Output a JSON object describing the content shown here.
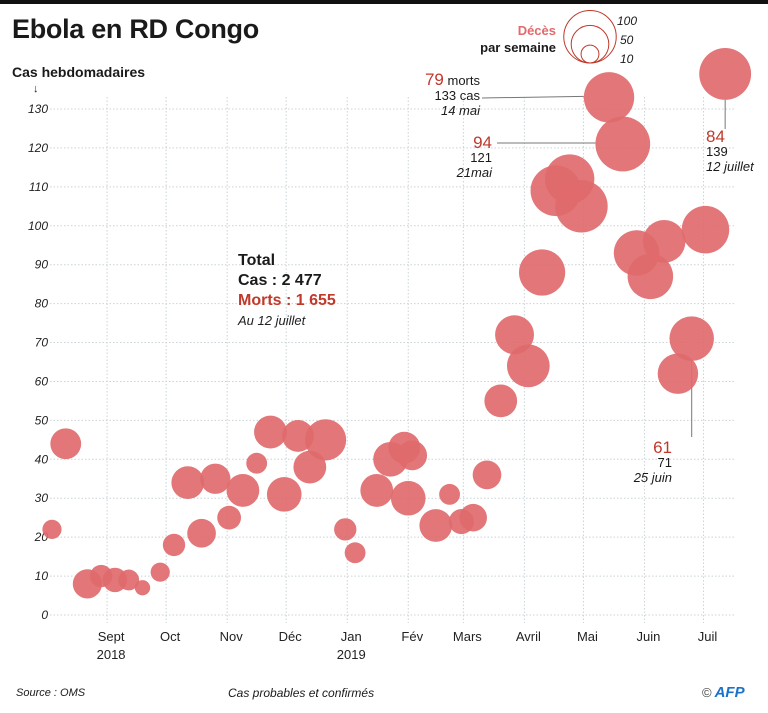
{
  "title": "Ebola en RD Congo",
  "y_axis_label": "Cas hebdomadaires",
  "y_arrow": "↓",
  "total_box": {
    "heading": "Total",
    "cases": "Cas : 2 477",
    "deaths": "Morts : 1 655",
    "date": "Au 12 juillet"
  },
  "legend": {
    "title_red": "Décès",
    "title_black": "par semaine",
    "sizes": [
      "100",
      "50",
      "10"
    ]
  },
  "annotations": [
    {
      "deaths": "79",
      "deaths_suffix": " morts",
      "cases": "133 cas",
      "date": "14 mai"
    },
    {
      "deaths": "94",
      "cases": "121",
      "date": "21mai"
    },
    {
      "deaths": "84",
      "cases": "139",
      "date": "12 juillet"
    },
    {
      "deaths": "61",
      "cases": "71",
      "date": "25 juin"
    }
  ],
  "footer": {
    "source": "Source : OMS",
    "note": "Cas probables et confirmés",
    "copyright": "©",
    "brand": "AFP"
  },
  "colors": {
    "bubble": "#e06a6c",
    "accent_text": "#c0392b",
    "brand": "#1a72c9"
  },
  "chart_data": {
    "type": "scatter",
    "subtype": "bubble",
    "title": "Ebola en RD Congo",
    "xlabel": "",
    "ylabel": "Cas hebdomadaires",
    "ylim": [
      0,
      130
    ],
    "yticks": [
      0,
      10,
      20,
      30,
      40,
      50,
      60,
      70,
      80,
      90,
      100,
      110,
      120,
      130
    ],
    "xlim": [
      "2018-08-03",
      "2019-07-17"
    ],
    "xticks": [
      {
        "date": "2018-09-01",
        "label": "Sept",
        "sublabel": "2018"
      },
      {
        "date": "2018-10-01",
        "label": "Oct",
        "sublabel": ""
      },
      {
        "date": "2018-11-01",
        "label": "Nov",
        "sublabel": ""
      },
      {
        "date": "2018-12-01",
        "label": "Déc",
        "sublabel": ""
      },
      {
        "date": "2019-01-01",
        "label": "Jan",
        "sublabel": "2019"
      },
      {
        "date": "2019-02-01",
        "label": "Fév",
        "sublabel": ""
      },
      {
        "date": "2019-03-01",
        "label": "Mars",
        "sublabel": ""
      },
      {
        "date": "2019-04-01",
        "label": "Avril",
        "sublabel": ""
      },
      {
        "date": "2019-05-01",
        "label": "Mai",
        "sublabel": ""
      },
      {
        "date": "2019-06-01",
        "label": "Juin",
        "sublabel": ""
      },
      {
        "date": "2019-07-01",
        "label": "Juil",
        "sublabel": ""
      }
    ],
    "grid": true,
    "size_legend": {
      "label": "Décès par semaine",
      "values": [
        100,
        50,
        10
      ]
    },
    "series": [
      {
        "name": "Cas hebdomadaires (taille = décès)",
        "points": [
          {
            "date": "2018-08-04",
            "cases": 22,
            "deaths": 10
          },
          {
            "date": "2018-08-11",
            "cases": 44,
            "deaths": 28
          },
          {
            "date": "2018-08-22",
            "cases": 8,
            "deaths": 25
          },
          {
            "date": "2018-08-29",
            "cases": 10,
            "deaths": 14
          },
          {
            "date": "2018-09-05",
            "cases": 9,
            "deaths": 17
          },
          {
            "date": "2018-09-12",
            "cases": 9,
            "deaths": 12
          },
          {
            "date": "2018-09-19",
            "cases": 7,
            "deaths": 6
          },
          {
            "date": "2018-09-28",
            "cases": 11,
            "deaths": 10
          },
          {
            "date": "2018-10-05",
            "cases": 18,
            "deaths": 14
          },
          {
            "date": "2018-10-12",
            "cases": 34,
            "deaths": 32
          },
          {
            "date": "2018-10-19",
            "cases": 21,
            "deaths": 24
          },
          {
            "date": "2018-10-26",
            "cases": 35,
            "deaths": 27
          },
          {
            "date": "2018-11-02",
            "cases": 25,
            "deaths": 16
          },
          {
            "date": "2018-11-09",
            "cases": 32,
            "deaths": 32
          },
          {
            "date": "2018-11-16",
            "cases": 39,
            "deaths": 12
          },
          {
            "date": "2018-11-23",
            "cases": 47,
            "deaths": 32
          },
          {
            "date": "2018-11-30",
            "cases": 31,
            "deaths": 36
          },
          {
            "date": "2018-12-07",
            "cases": 46,
            "deaths": 30
          },
          {
            "date": "2018-12-13",
            "cases": 38,
            "deaths": 32
          },
          {
            "date": "2018-12-21",
            "cases": 45,
            "deaths": 52
          },
          {
            "date": "2018-12-31",
            "cases": 22,
            "deaths": 14
          },
          {
            "date": "2019-01-05",
            "cases": 16,
            "deaths": 12
          },
          {
            "date": "2019-01-16",
            "cases": 32,
            "deaths": 32
          },
          {
            "date": "2019-01-23",
            "cases": 40,
            "deaths": 36
          },
          {
            "date": "2019-01-30",
            "cases": 43,
            "deaths": 30
          },
          {
            "date": "2019-02-01",
            "cases": 30,
            "deaths": 36
          },
          {
            "date": "2019-02-03",
            "cases": 41,
            "deaths": 26
          },
          {
            "date": "2019-02-15",
            "cases": 23,
            "deaths": 32
          },
          {
            "date": "2019-02-22",
            "cases": 31,
            "deaths": 12
          },
          {
            "date": "2019-02-28",
            "cases": 24,
            "deaths": 18
          },
          {
            "date": "2019-03-06",
            "cases": 25,
            "deaths": 22
          },
          {
            "date": "2019-03-13",
            "cases": 36,
            "deaths": 24
          },
          {
            "date": "2019-03-20",
            "cases": 55,
            "deaths": 32
          },
          {
            "date": "2019-03-27",
            "cases": 72,
            "deaths": 46
          },
          {
            "date": "2019-04-03",
            "cases": 64,
            "deaths": 56
          },
          {
            "date": "2019-04-10",
            "cases": 88,
            "deaths": 66
          },
          {
            "date": "2019-04-17",
            "cases": 109,
            "deaths": 80
          },
          {
            "date": "2019-04-24",
            "cases": 112,
            "deaths": 76
          },
          {
            "date": "2019-04-30",
            "cases": 105,
            "deaths": 86
          },
          {
            "date": "2019-05-14",
            "cases": 133,
            "deaths": 79
          },
          {
            "date": "2019-05-21",
            "cases": 121,
            "deaths": 94
          },
          {
            "date": "2019-05-28",
            "cases": 93,
            "deaths": 64
          },
          {
            "date": "2019-06-04",
            "cases": 87,
            "deaths": 64
          },
          {
            "date": "2019-06-11",
            "cases": 96,
            "deaths": 56
          },
          {
            "date": "2019-06-18",
            "cases": 62,
            "deaths": 50
          },
          {
            "date": "2019-06-25",
            "cases": 71,
            "deaths": 61
          },
          {
            "date": "2019-07-02",
            "cases": 99,
            "deaths": 70
          },
          {
            "date": "2019-07-12",
            "cases": 139,
            "deaths": 84
          }
        ]
      }
    ],
    "annotations": [
      {
        "date": "2019-05-14",
        "text": "79 morts / 133 cas / 14 mai"
      },
      {
        "date": "2019-05-21",
        "text": "94 / 121 / 21mai"
      },
      {
        "date": "2019-07-12",
        "text": "84 / 139 / 12 juillet"
      },
      {
        "date": "2019-06-25",
        "text": "61 / 71 / 25 juin"
      }
    ],
    "source": "Source : OMS",
    "note": "Cas probables et confirmés"
  }
}
